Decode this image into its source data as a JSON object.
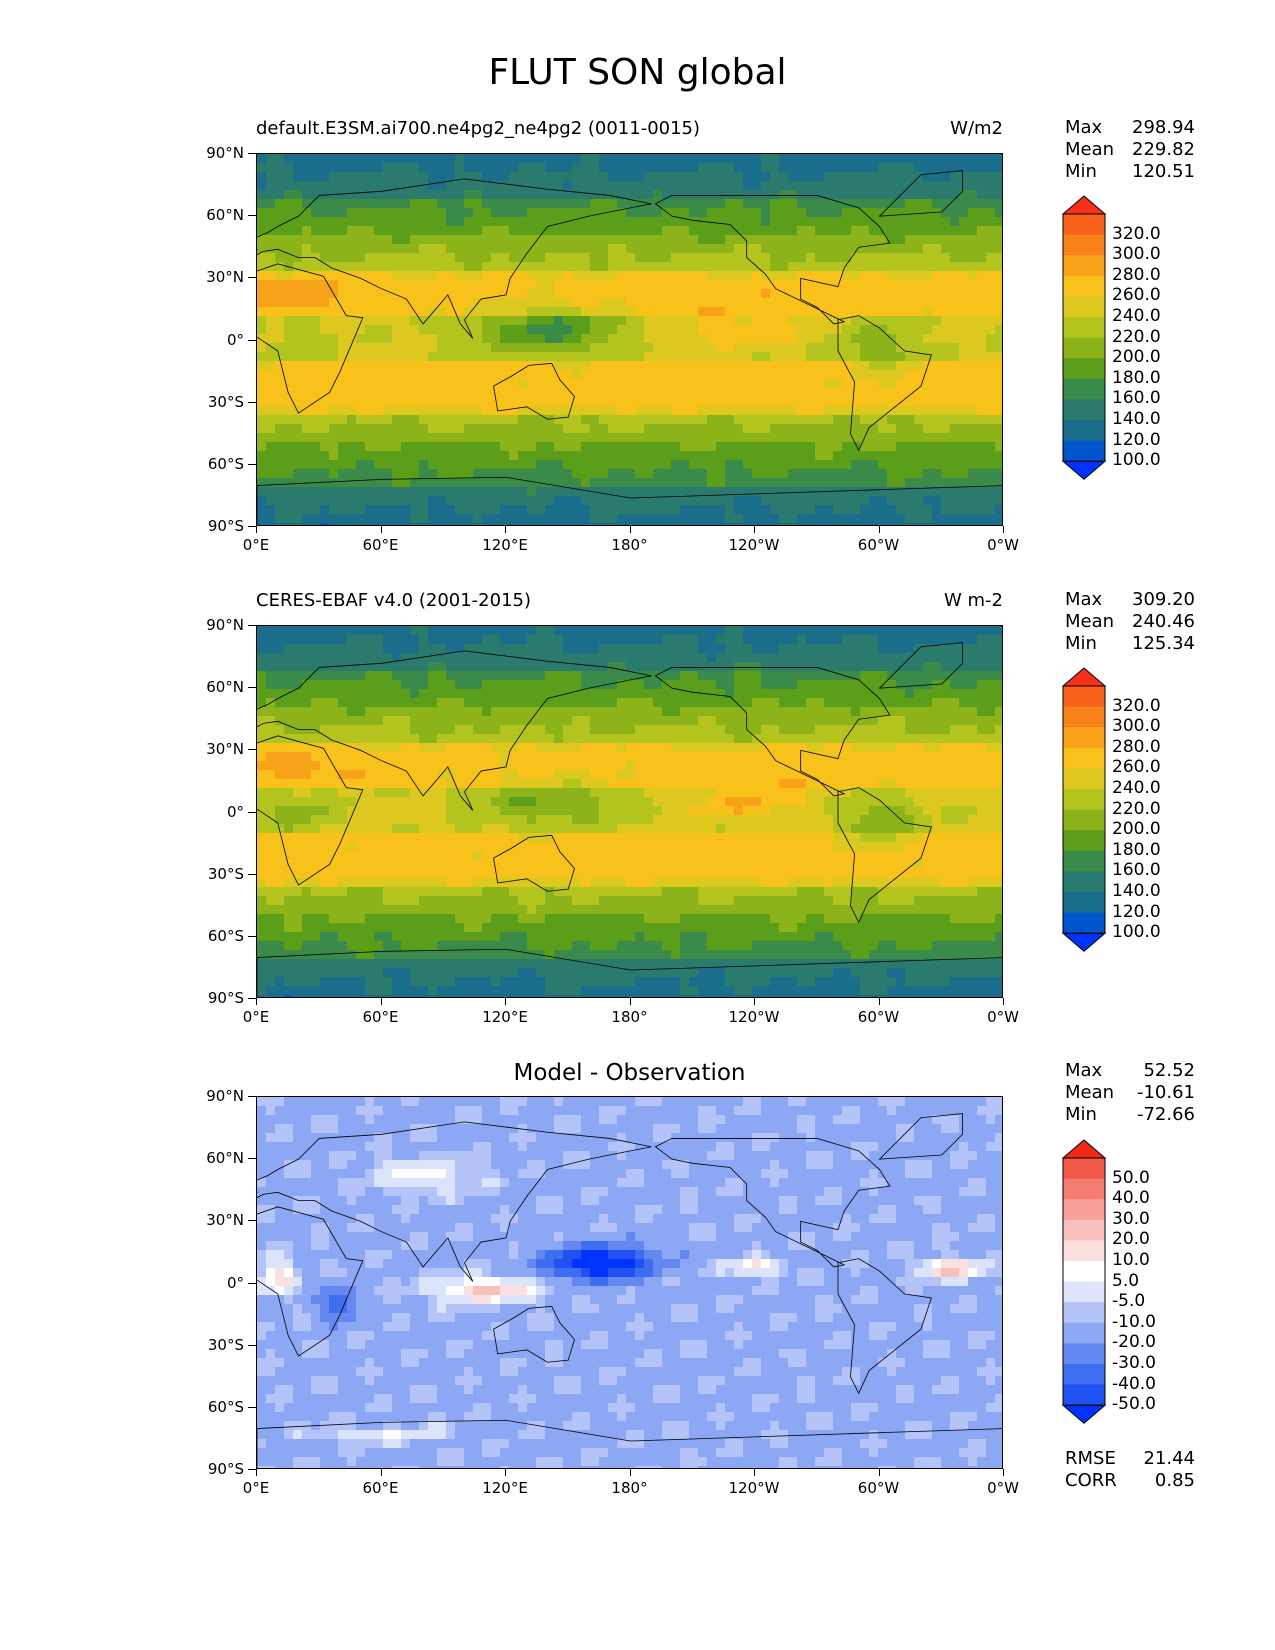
{
  "figure": {
    "title": "FLUT SON global"
  },
  "axes": {
    "lat_ticks": [
      "90°N",
      "60°N",
      "30°N",
      "0°",
      "30°S",
      "60°S",
      "90°S"
    ],
    "lon_ticks": [
      "0°E",
      "60°E",
      "120°E",
      "180°",
      "120°W",
      "60°W",
      "0°W"
    ]
  },
  "panels": [
    {
      "name": "model",
      "left_title": "default.E3SM.ai700.ne4pg2_ne4pg2 (0011-0015)",
      "right_title": "W/m2",
      "center_title": "",
      "stats": {
        "max_label": "Max",
        "max": "298.94",
        "mean_label": "Mean",
        "mean": "229.82",
        "min_label": "Min",
        "min": "120.51"
      },
      "colorbar": [
        "320.0",
        "300.0",
        "280.0",
        "260.0",
        "240.0",
        "220.0",
        "200.0",
        "180.0",
        "160.0",
        "140.0",
        "120.0",
        "100.0"
      ]
    },
    {
      "name": "observation",
      "left_title": "CERES-EBAF v4.0 (2001-2015)",
      "right_title": "W m-2",
      "center_title": "",
      "stats": {
        "max_label": "Max",
        "max": "309.20",
        "mean_label": "Mean",
        "mean": "240.46",
        "min_label": "Min",
        "min": "125.34"
      },
      "colorbar": [
        "320.0",
        "300.0",
        "280.0",
        "260.0",
        "240.0",
        "220.0",
        "200.0",
        "180.0",
        "160.0",
        "140.0",
        "120.0",
        "100.0"
      ]
    },
    {
      "name": "difference",
      "left_title": "",
      "right_title": "",
      "center_title": "Model - Observation",
      "stats": {
        "max_label": "Max",
        "max": "52.52",
        "mean_label": "Mean",
        "mean": "-10.61",
        "min_label": "Min",
        "min": "-72.66"
      },
      "colorbar": [
        "50.0",
        "40.0",
        "30.0",
        "20.0",
        "10.0",
        "5.0",
        "-5.0",
        "-10.0",
        "-20.0",
        "-30.0",
        "-40.0",
        "-50.0"
      ],
      "error_stats": {
        "rmse_label": "RMSE",
        "rmse": "21.44",
        "corr_label": "CORR",
        "corr": "0.85"
      }
    }
  ],
  "colors": {
    "abs_palette": [
      "#0033ff",
      "#0055cc",
      "#1a6e8c",
      "#2a7a6e",
      "#3a8a4a",
      "#5a9e1a",
      "#8cb41a",
      "#b4c41e",
      "#dcc81e",
      "#f8c21a",
      "#f8a21a",
      "#f8821a",
      "#f8621a",
      "#f8301a"
    ],
    "diff_palette": [
      "#0033ff",
      "#1f52f0",
      "#3d6ef0",
      "#6488f0",
      "#8ca8f4",
      "#b4c4f8",
      "#dce4fc",
      "#ffffff",
      "#fce0e0",
      "#f8c0bc",
      "#f8a098",
      "#f47c70",
      "#f05848",
      "#f02818"
    ]
  },
  "chart_data": {
    "type": "heatmap",
    "title": "FLUT SON global",
    "variable": "FLUT",
    "season": "SON",
    "units": "W/m2",
    "x_ticks": [
      "0°E",
      "60°E",
      "120°E",
      "180°",
      "120°W",
      "60°W",
      "0°W"
    ],
    "y_ticks": [
      "90°N",
      "60°N",
      "30°N",
      "0°",
      "30°S",
      "60°S",
      "90°S"
    ],
    "xlim": [
      0,
      360
    ],
    "ylim": [
      -90,
      90
    ],
    "panels": [
      {
        "name": "default.E3SM.ai700.ne4pg2_ne4pg2 (0011-0015)",
        "max": 298.94,
        "mean": 229.82,
        "min": 120.51,
        "levels": [
          100,
          120,
          140,
          160,
          180,
          200,
          220,
          240,
          260,
          280,
          300,
          320
        ]
      },
      {
        "name": "CERES-EBAF v4.0 (2001-2015)",
        "max": 309.2,
        "mean": 240.46,
        "min": 125.34,
        "levels": [
          100,
          120,
          140,
          160,
          180,
          200,
          220,
          240,
          260,
          280,
          300,
          320
        ]
      },
      {
        "name": "Model - Observation",
        "max": 52.52,
        "mean": -10.61,
        "min": -72.66,
        "rmse": 21.44,
        "corr": 0.85,
        "levels": [
          -50,
          -40,
          -30,
          -20,
          -10,
          -5,
          5,
          10,
          20,
          30,
          40,
          50
        ]
      }
    ]
  }
}
